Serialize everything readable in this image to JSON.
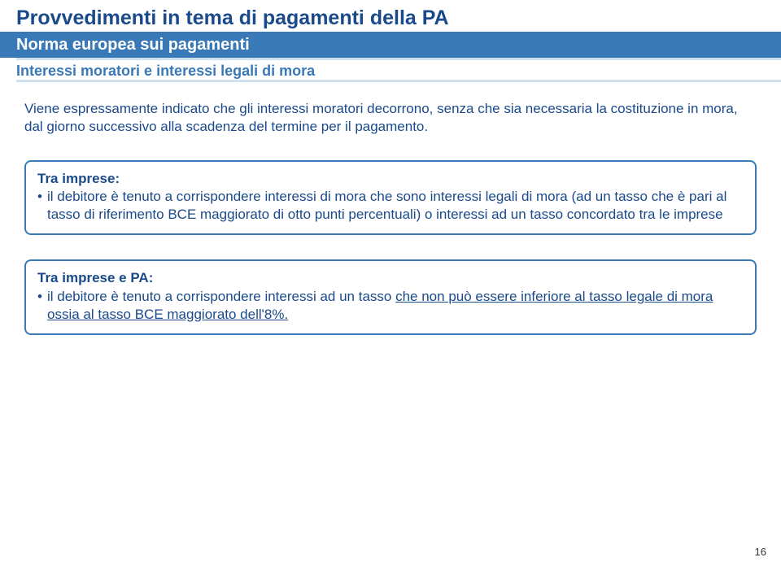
{
  "page": {
    "title": "Provvedimenti in tema di pagamenti della PA",
    "subtitle": "Norma europea sui pagamenti",
    "subtitle2": "Interessi moratori e interessi legali di mora",
    "paragraph": "Viene espressamente indicato che gli interessi moratori decorrono, senza che sia necessaria la costituzione in mora, dal giorno successivo alla scadenza del termine per il pagamento.",
    "box1": {
      "title": "Tra imprese:",
      "bullet": "il debitore è tenuto a corrispondere interessi di mora che sono interessi legali di mora (ad un tasso che è pari al tasso di riferimento BCE maggiorato di otto punti percentuali) o interessi ad un tasso concordato tra le imprese"
    },
    "box2": {
      "title": "Tra imprese e PA:",
      "bullet_prefix": " il debitore è tenuto a corrispondere interessi ad un tasso ",
      "bullet_underlined": "che non può essere inferiore al tasso legale di mora ossia al tasso BCE maggiorato dell'8%."
    },
    "page_number": "16"
  }
}
